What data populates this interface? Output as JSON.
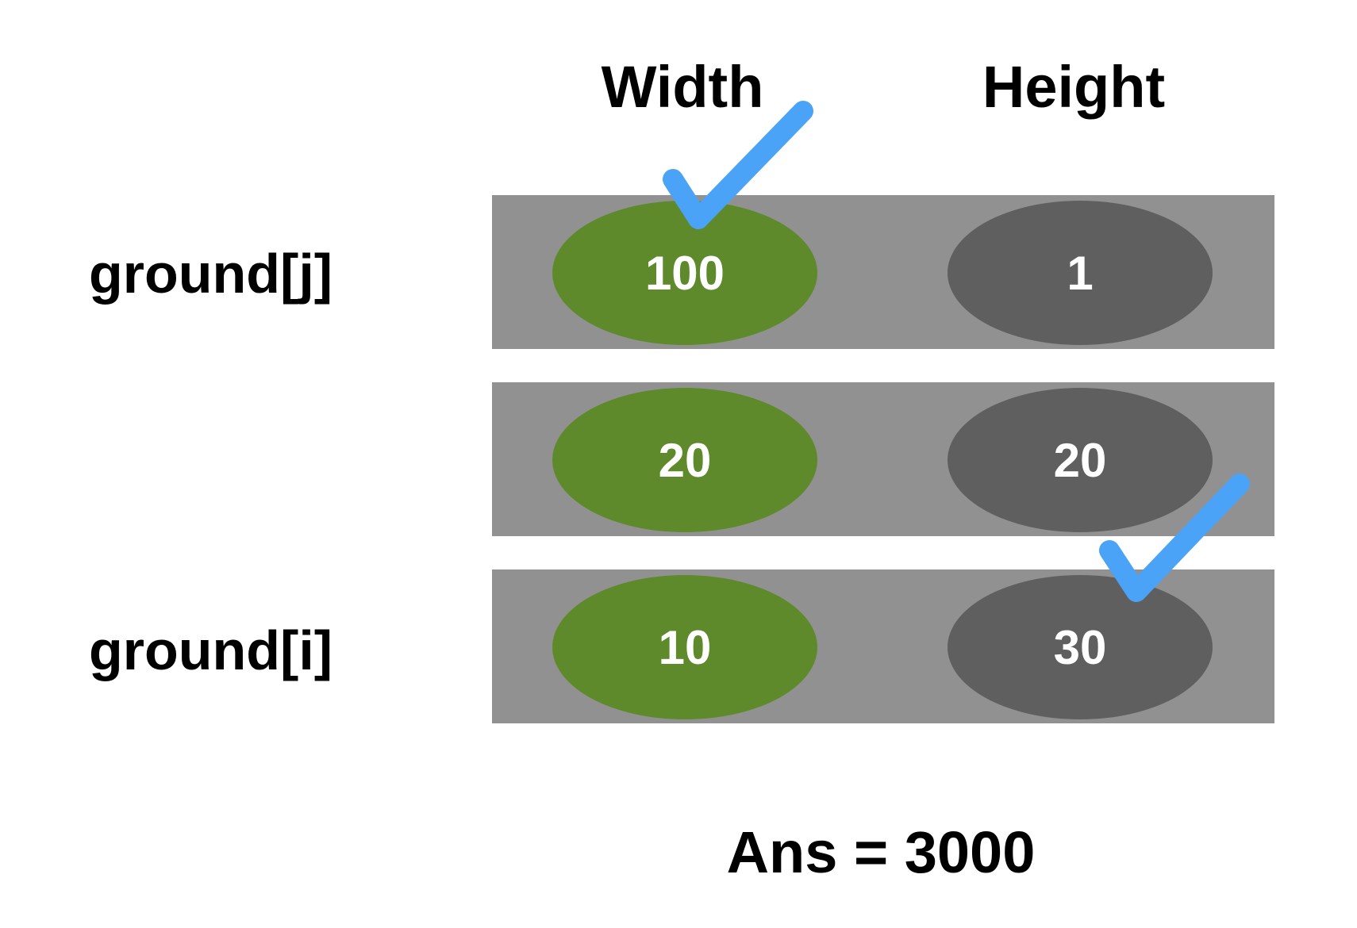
{
  "columns": {
    "width": "Width",
    "height": "Height"
  },
  "row_labels": {
    "top": "ground[j]",
    "bottom": "ground[i]"
  },
  "rows": [
    {
      "width": "100",
      "height": "1"
    },
    {
      "width": "20",
      "height": "20"
    },
    {
      "width": "10",
      "height": "30"
    }
  ],
  "answer": "Ans = 3000",
  "colors": {
    "row_band": "#919191",
    "width_cell": "#5e8a2b",
    "height_cell": "#5f5f5f",
    "check": "#4aa3f7",
    "text_on_cell": "#ffffff",
    "text": "#000000"
  },
  "icons": {
    "selected_width": "checkmark-icon",
    "selected_height": "checkmark-icon"
  }
}
